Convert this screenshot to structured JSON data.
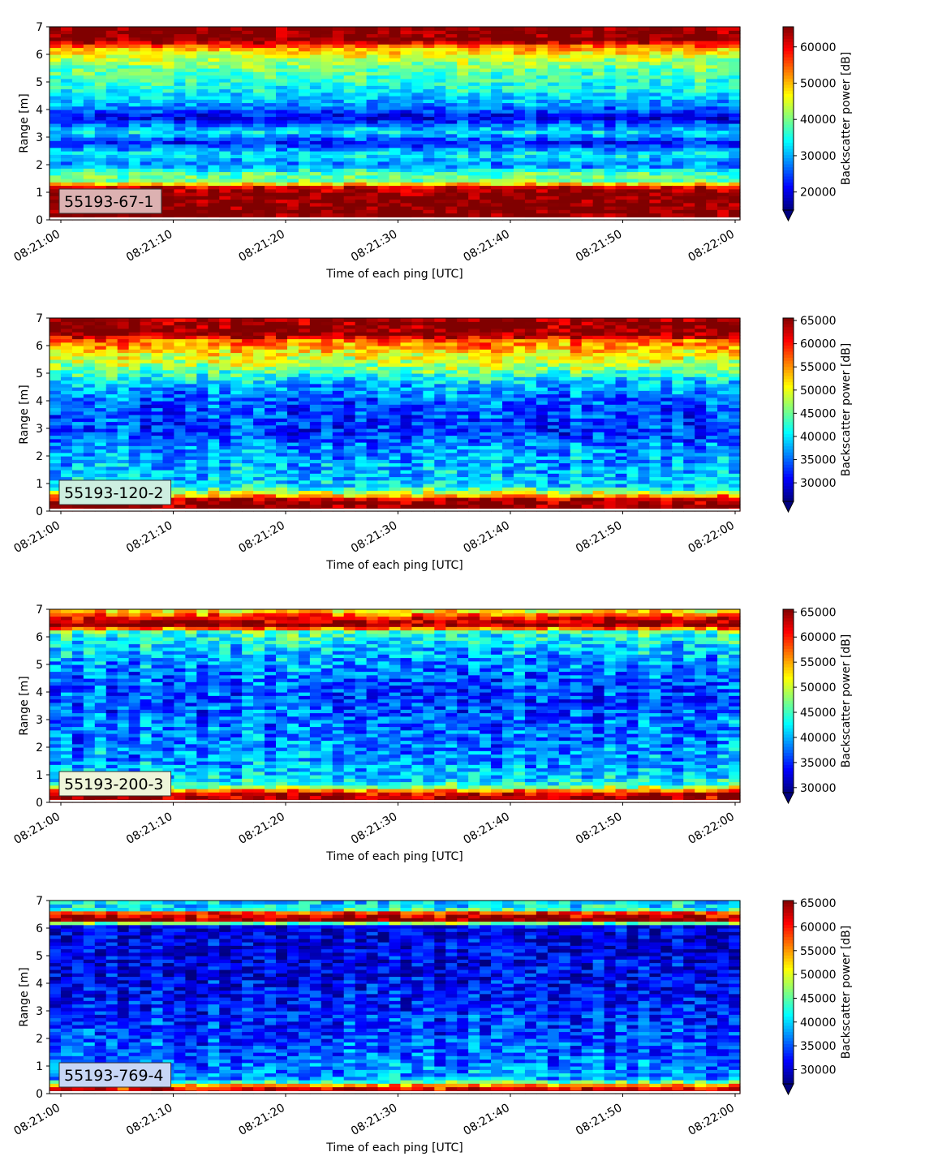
{
  "chart_data": [
    {
      "type": "heatmap",
      "label": "55193-67-1",
      "xlabel": "Time of each ping [UTC]",
      "ylabel": "Range [m]",
      "xticks": [
        "08:21:00",
        "08:21:10",
        "08:21:20",
        "08:21:30",
        "08:21:40",
        "08:21:50",
        "08:22:00"
      ],
      "yticks": [
        0,
        1,
        2,
        3,
        4,
        5,
        6,
        7
      ],
      "ylim": [
        0,
        7
      ],
      "colorbar": {
        "label": "Backscatter power [dB]",
        "ticks": [
          20000,
          30000,
          40000,
          50000,
          60000
        ],
        "vmin": 15000,
        "vmax": 65535,
        "extend": "min"
      },
      "label_box_color": "#dcb1b1",
      "profile": [
        {
          "range": 0.2,
          "value": 65535
        },
        {
          "range": 1.0,
          "value": 65535
        },
        {
          "range": 1.2,
          "value": 60000
        },
        {
          "range": 1.4,
          "value": 40000
        },
        {
          "range": 1.7,
          "value": 38000
        },
        {
          "range": 2.0,
          "value": 27000
        },
        {
          "range": 2.4,
          "value": 34000
        },
        {
          "range": 2.8,
          "value": 22000
        },
        {
          "range": 3.2,
          "value": 33000
        },
        {
          "range": 3.7,
          "value": 20000
        },
        {
          "range": 4.2,
          "value": 29000
        },
        {
          "range": 4.8,
          "value": 35000
        },
        {
          "range": 5.4,
          "value": 38000
        },
        {
          "range": 5.9,
          "value": 44000
        },
        {
          "range": 6.2,
          "value": 50000
        },
        {
          "range": 6.4,
          "value": 58000
        },
        {
          "range": 6.5,
          "value": 65535
        },
        {
          "range": 7.0,
          "value": 65535
        }
      ]
    },
    {
      "type": "heatmap",
      "label": "55193-120-2",
      "xlabel": "Time of each ping [UTC]",
      "ylabel": "Range [m]",
      "xticks": [
        "08:21:00",
        "08:21:10",
        "08:21:20",
        "08:21:30",
        "08:21:40",
        "08:21:50",
        "08:22:00"
      ],
      "yticks": [
        0,
        1,
        2,
        3,
        4,
        5,
        6,
        7
      ],
      "ylim": [
        0,
        7
      ],
      "colorbar": {
        "label": "Backscatter power [dB]",
        "ticks": [
          30000,
          35000,
          40000,
          45000,
          50000,
          55000,
          60000,
          65000
        ],
        "vmin": 26000,
        "vmax": 65535,
        "extend": "min"
      },
      "label_box_color": "#cdeee0",
      "profile": [
        {
          "range": 0.1,
          "value": 65535
        },
        {
          "range": 0.4,
          "value": 65000
        },
        {
          "range": 0.6,
          "value": 52000
        },
        {
          "range": 0.9,
          "value": 40000
        },
        {
          "range": 1.5,
          "value": 38000
        },
        {
          "range": 2.2,
          "value": 37000
        },
        {
          "range": 2.8,
          "value": 33000
        },
        {
          "range": 3.3,
          "value": 33500
        },
        {
          "range": 4.0,
          "value": 34500
        },
        {
          "range": 4.6,
          "value": 38000
        },
        {
          "range": 5.2,
          "value": 46000
        },
        {
          "range": 5.8,
          "value": 52000
        },
        {
          "range": 6.2,
          "value": 57000
        },
        {
          "range": 6.4,
          "value": 65535
        },
        {
          "range": 7.0,
          "value": 65535
        }
      ]
    },
    {
      "type": "heatmap",
      "label": "55193-200-3",
      "xlabel": "Time of each ping [UTC]",
      "ylabel": "Range [m]",
      "xticks": [
        "08:21:00",
        "08:21:10",
        "08:21:20",
        "08:21:30",
        "08:21:40",
        "08:21:50",
        "08:22:00"
      ],
      "yticks": [
        0,
        1,
        2,
        3,
        4,
        5,
        6,
        7
      ],
      "ylim": [
        0,
        7
      ],
      "colorbar": {
        "label": "Backscatter power [dB]",
        "ticks": [
          30000,
          35000,
          40000,
          45000,
          50000,
          55000,
          60000,
          65000
        ],
        "vmin": 29000,
        "vmax": 65535,
        "extend": "min"
      },
      "label_box_color": "#eef5da",
      "profile": [
        {
          "range": 0.1,
          "value": 65535
        },
        {
          "range": 0.35,
          "value": 62000
        },
        {
          "range": 0.6,
          "value": 46000
        },
        {
          "range": 1.0,
          "value": 40000
        },
        {
          "range": 1.6,
          "value": 39000
        },
        {
          "range": 2.3,
          "value": 38000
        },
        {
          "range": 3.0,
          "value": 37500
        },
        {
          "range": 3.6,
          "value": 36000
        },
        {
          "range": 4.3,
          "value": 36500
        },
        {
          "range": 5.0,
          "value": 39000
        },
        {
          "range": 5.6,
          "value": 41000
        },
        {
          "range": 6.2,
          "value": 45000
        },
        {
          "range": 6.4,
          "value": 65535
        },
        {
          "range": 6.7,
          "value": 62000
        },
        {
          "range": 7.0,
          "value": 50000
        }
      ]
    },
    {
      "type": "heatmap",
      "label": "55193-769-4",
      "xlabel": "Time of each ping [UTC]",
      "ylabel": "Range [m]",
      "xticks": [
        "08:21:00",
        "08:21:10",
        "08:21:20",
        "08:21:30",
        "08:21:40",
        "08:21:50",
        "08:22:00"
      ],
      "yticks": [
        0,
        1,
        2,
        3,
        4,
        5,
        6,
        7
      ],
      "ylim": [
        0,
        7
      ],
      "colorbar": {
        "label": "Backscatter power [dB]",
        "ticks": [
          30000,
          35000,
          40000,
          45000,
          50000,
          55000,
          60000,
          65000
        ],
        "vmin": 27000,
        "vmax": 65535,
        "extend": "min"
      },
      "label_box_color": "#c7d6f5",
      "profile": [
        {
          "range": 0.1,
          "value": 65535
        },
        {
          "range": 0.3,
          "value": 56000
        },
        {
          "range": 0.5,
          "value": 38500
        },
        {
          "range": 1.2,
          "value": 36000
        },
        {
          "range": 2.0,
          "value": 34500
        },
        {
          "range": 3.0,
          "value": 33000
        },
        {
          "range": 4.5,
          "value": 31000
        },
        {
          "range": 5.5,
          "value": 30500
        },
        {
          "range": 6.1,
          "value": 31000
        },
        {
          "range": 6.3,
          "value": 65535
        },
        {
          "range": 6.55,
          "value": 60000
        },
        {
          "range": 6.7,
          "value": 41000
        },
        {
          "range": 7.0,
          "value": 40000
        }
      ]
    }
  ]
}
